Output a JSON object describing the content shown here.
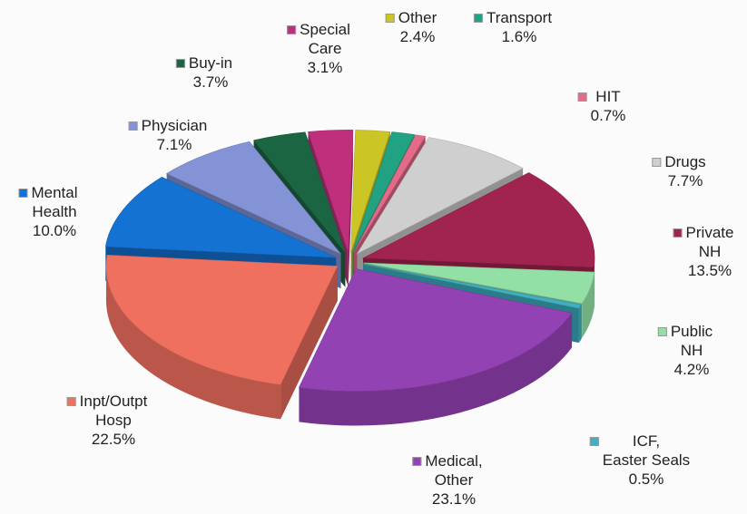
{
  "chart_data": {
    "type": "pie3d",
    "categories": [
      "Special\nCare",
      "Other",
      "Transport",
      "HIT",
      "Drugs",
      "Private\nNH",
      "Public\nNH",
      "ICF,\nEaster Seals",
      "Medical,\nOther",
      "Inpt/Outpt\nHosp",
      "Mental\nHealth",
      "Physician",
      "Buy-in"
    ],
    "values": [
      3.1,
      2.4,
      1.6,
      0.7,
      7.7,
      13.5,
      4.2,
      0.5,
      23.1,
      22.5,
      10.0,
      7.1,
      3.7
    ],
    "value_labels": [
      "3.1%",
      "2.4%",
      "1.6%",
      "0.7%",
      "7.7%",
      "13.5%",
      "4.2%",
      "0.5%",
      "23.1%",
      "22.5%",
      "10.0%",
      "7.1%",
      "3.7%"
    ],
    "colors": [
      "#c02f7c",
      "#cbc526",
      "#21a383",
      "#e46a8a",
      "#cfcfcf",
      "#a1234f",
      "#93e0a6",
      "#3fb0c2",
      "#9342b3",
      "#f0705f",
      "#1472d2",
      "#8393d6",
      "#1b6543"
    ]
  }
}
